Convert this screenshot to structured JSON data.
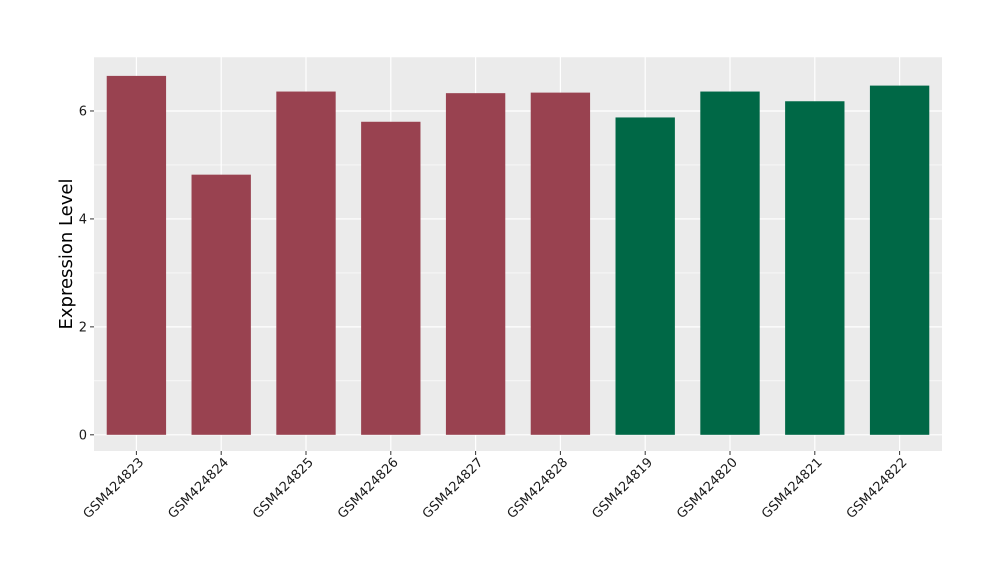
{
  "chart_data": {
    "type": "bar",
    "title": "",
    "xlabel": "",
    "ylabel": "Expression Level",
    "categories": [
      "GSM424823",
      "GSM424824",
      "GSM424825",
      "GSM424826",
      "GSM424827",
      "GSM424828",
      "GSM424819",
      "GSM424820",
      "GSM424821",
      "GSM424822"
    ],
    "values": [
      6.65,
      4.82,
      6.36,
      5.8,
      6.33,
      6.34,
      5.88,
      6.36,
      6.18,
      6.47
    ],
    "bar_colors": [
      "#994250",
      "#994250",
      "#994250",
      "#994250",
      "#994250",
      "#994250",
      "#006846",
      "#006846",
      "#006846",
      "#006846"
    ],
    "ylim": [
      -0.3,
      7.0
    ],
    "yticks": [
      0,
      2,
      4,
      6
    ],
    "grid": true,
    "legend": "none",
    "panel_background": "#ebebeb",
    "gridline_color": "#ffffff"
  }
}
